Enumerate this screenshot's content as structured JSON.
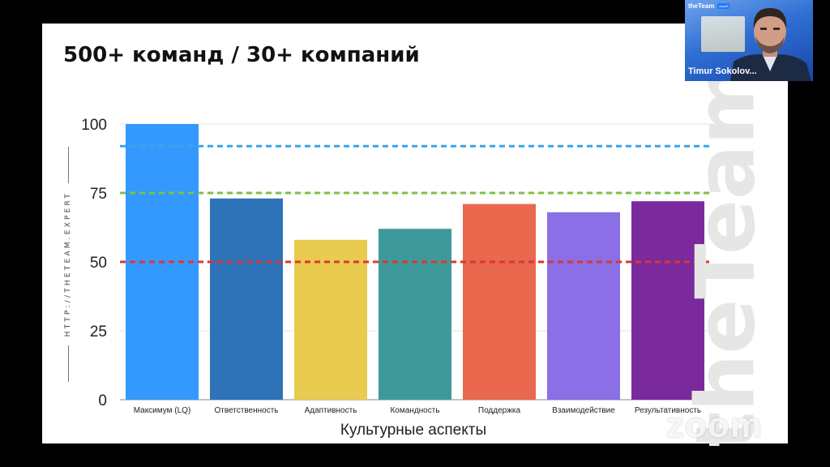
{
  "slide": {
    "title": "500+ команд / 30+ компаний",
    "side_url": "HTTP://THETEAM.EXPERT",
    "watermark": "theTeam"
  },
  "chart_data": {
    "type": "bar",
    "title": "",
    "xlabel": "Культурные аспекты",
    "ylabel": "",
    "categories": [
      "Максимум (LQ)",
      "Ответственность",
      "Адаптивность",
      "Командность",
      "Поддержка",
      "Взаимодействие",
      "Результативность"
    ],
    "values": [
      100,
      73,
      58,
      62,
      71,
      68,
      72
    ],
    "colors": [
      "#3399ff",
      "#2e72b8",
      "#e8cb4f",
      "#3e9a9a",
      "#e9684e",
      "#8a6fe6",
      "#7a2a9c"
    ],
    "ylim": [
      0,
      100
    ],
    "yticks": [
      0,
      25,
      50,
      75,
      100
    ],
    "grid": true,
    "reference_lines": [
      {
        "value": 92,
        "color": "#3ba3e8",
        "style": "dashed"
      },
      {
        "value": 75,
        "color": "#7cc242",
        "style": "dashed"
      },
      {
        "value": 50,
        "color": "#e0352b",
        "style": "dashed"
      }
    ]
  },
  "video_tile": {
    "brand": "theTeam",
    "badge": "expert",
    "participant_name": "Timur Sokolov..."
  },
  "app": {
    "watermark": "zoom"
  }
}
